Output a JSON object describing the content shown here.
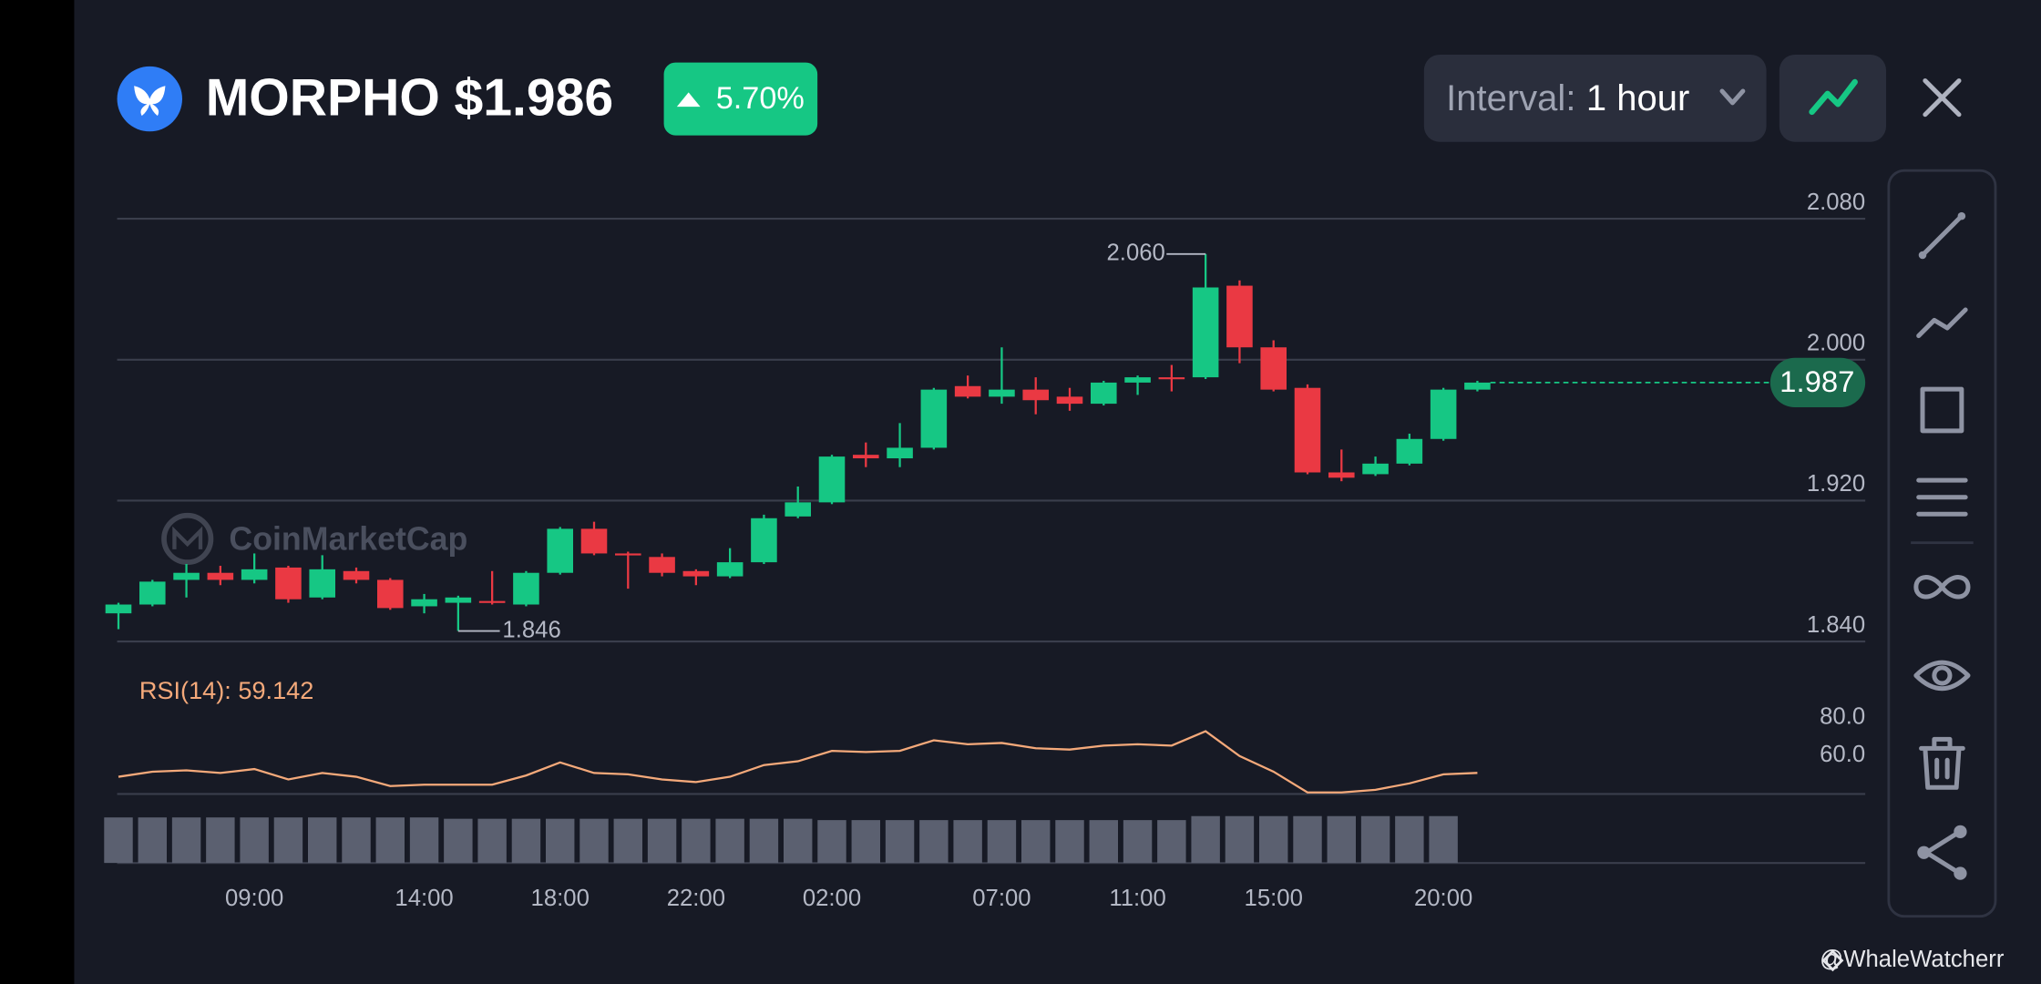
{
  "header": {
    "symbol": "MORPHO",
    "price": "$1.986",
    "change": "5.70%",
    "interval_label": "Interval:",
    "interval": "1 hour",
    "credit": "@WhaleWatcherr"
  },
  "chart_data": [
    {
      "type": "candlestick",
      "categories": [
        null,
        null,
        null,
        null,
        "09:00",
        null,
        null,
        null,
        null,
        "14:00",
        null,
        null,
        null,
        "18:00",
        null,
        null,
        null,
        "22:00",
        null,
        null,
        null,
        "02:00",
        null,
        null,
        null,
        null,
        "07:00",
        null,
        null,
        null,
        "11:00",
        null,
        null,
        null,
        "15:00",
        null,
        null,
        null,
        null,
        "20:00",
        null
      ],
      "open": [
        1.856,
        1.861,
        1.875,
        1.879,
        1.875,
        1.882,
        1.865,
        1.88,
        1.875,
        1.86,
        1.862,
        1.863,
        1.861,
        1.879,
        1.904,
        1.89,
        1.888,
        1.88,
        1.877,
        1.885,
        1.911,
        1.919,
        1.946,
        1.944,
        1.95,
        1.985,
        1.979,
        1.983,
        1.979,
        1.975,
        1.987,
        1.99,
        1.99,
        2.042,
        2.007,
        1.984,
        1.936,
        1.935,
        1.941,
        1.955,
        1.983
      ],
      "high": [
        1.862,
        1.875,
        1.884,
        1.883,
        1.89,
        1.883,
        1.889,
        1.882,
        1.876,
        1.867,
        1.866,
        1.88,
        1.88,
        1.905,
        1.908,
        1.891,
        1.89,
        1.881,
        1.893,
        1.912,
        1.928,
        1.946,
        1.953,
        1.964,
        1.984,
        1.991,
        2.007,
        1.99,
        1.984,
        1.988,
        1.991,
        1.997,
        2.06,
        2.045,
        2.011,
        1.986,
        1.949,
        1.945,
        1.958,
        1.984,
        1.988
      ],
      "low": [
        1.847,
        1.86,
        1.865,
        1.872,
        1.873,
        1.862,
        1.864,
        1.873,
        1.858,
        1.856,
        1.846,
        1.861,
        1.86,
        1.878,
        1.889,
        1.87,
        1.877,
        1.872,
        1.876,
        1.884,
        1.91,
        1.918,
        1.939,
        1.939,
        1.949,
        1.978,
        1.975,
        1.969,
        1.971,
        1.974,
        1.98,
        1.982,
        1.989,
        1.998,
        1.982,
        1.935,
        1.931,
        1.934,
        1.94,
        1.954,
        1.982
      ],
      "close": [
        1.861,
        1.874,
        1.879,
        1.875,
        1.881,
        1.864,
        1.881,
        1.875,
        1.859,
        1.864,
        1.865,
        1.862,
        1.879,
        1.904,
        1.89,
        1.889,
        1.879,
        1.877,
        1.885,
        1.91,
        1.919,
        1.945,
        1.944,
        1.95,
        1.983,
        1.979,
        1.983,
        1.977,
        1.975,
        1.987,
        1.99,
        1.989,
        2.041,
        2.007,
        1.983,
        1.936,
        1.933,
        1.941,
        1.955,
        1.983,
        1.987
      ],
      "up_color": "#16c784",
      "down_color": "#ea3943",
      "ylim": [
        1.834,
        2.1
      ],
      "yticks": [
        {
          "value": 2.08,
          "label": "2.080"
        },
        {
          "value": 2.0,
          "label": "2.000"
        },
        {
          "value": 1.92,
          "label": "1.920"
        },
        {
          "value": 1.84,
          "label": "1.840"
        }
      ],
      "grid": true,
      "annotations": [
        {
          "value": 2.06,
          "label": "2.060"
        },
        {
          "value": 1.846,
          "label": "1.846"
        }
      ],
      "last_price": {
        "value": 1.987,
        "label": "1.987"
      },
      "watermark": "CoinMarketCap"
    },
    {
      "type": "line",
      "title": "RSI(14): 59.142",
      "color": "#f4a97a",
      "values": [
        57.1,
        59.8,
        60.5,
        59.1,
        61.2,
        55.7,
        59.1,
        57.1,
        52.2,
        52.9,
        52.9,
        52.9,
        57.8,
        64.7,
        59.1,
        58.4,
        55.7,
        54.3,
        57.1,
        63.3,
        65.3,
        70.8,
        70.2,
        70.8,
        76.4,
        74.3,
        75.0,
        72.2,
        71.5,
        73.6,
        74.3,
        73.6,
        81.2,
        68.1,
        59.8,
        48.8,
        48.8,
        50.2,
        53.6,
        58.4,
        59.142
      ],
      "ylim": [
        48,
        110
      ],
      "yticks": [
        {
          "value": 80,
          "label": "80.0"
        },
        {
          "value": 60,
          "label": "60.0"
        }
      ]
    },
    {
      "type": "bar",
      "color": "#5b6070",
      "values": [
        34,
        34,
        34,
        34,
        34,
        34,
        34,
        34,
        34,
        34,
        33,
        33,
        33,
        33,
        33,
        33,
        33,
        33,
        33,
        33,
        33,
        32,
        32,
        32,
        32,
        32,
        32,
        32,
        32,
        32,
        32,
        32,
        35,
        35,
        35,
        35,
        35,
        35,
        35,
        35,
        null
      ]
    }
  ]
}
